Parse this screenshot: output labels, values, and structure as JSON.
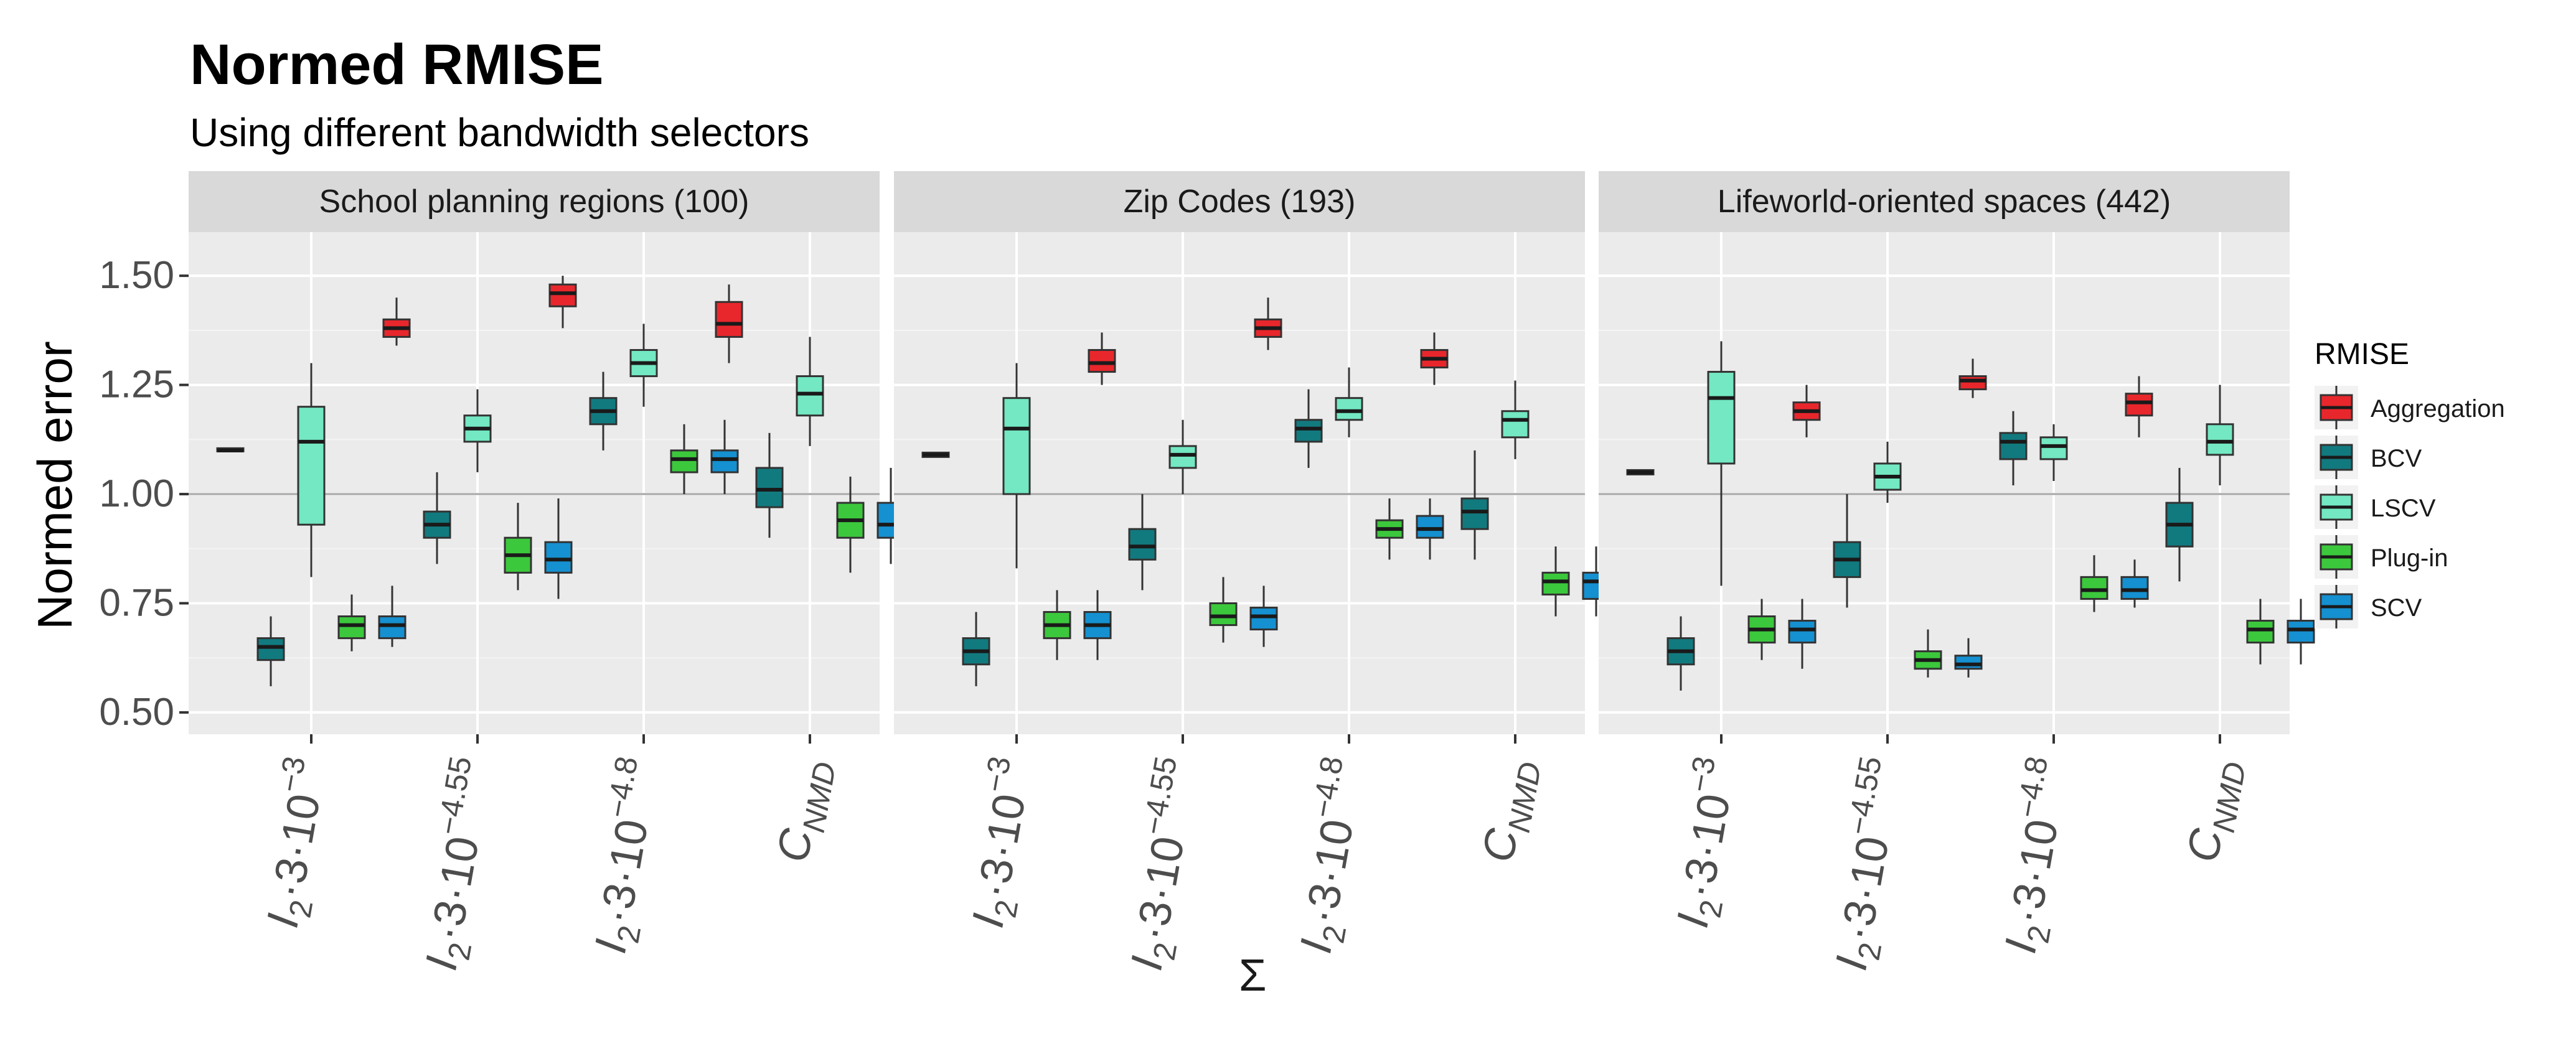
{
  "chart_data": {
    "type": "boxplot",
    "title": "Normed RMISE",
    "subtitle": "Using different bandwidth selectors",
    "ylabel": "Normed error",
    "ylim": [
      0.45,
      1.6
    ],
    "yticks": [
      0.5,
      0.75,
      1.0,
      1.25,
      1.5
    ],
    "reference_line": 1.0,
    "grid": true,
    "legend": {
      "title": "RMISE",
      "position": "right",
      "entries": [
        {
          "name": "Aggregation",
          "color": "#E8272C"
        },
        {
          "name": "BCV",
          "color": "#117A7F"
        },
        {
          "name": "LSCV",
          "color": "#73E8C2"
        },
        {
          "name": "Plug-in",
          "color": "#3CC83C"
        },
        {
          "name": "SCV",
          "color": "#1590D0"
        }
      ]
    },
    "x_categories": [
      {
        "base": "I",
        "sub": "2",
        "body": "·3·10",
        "sup": "−3"
      },
      {
        "base": "I",
        "sub": "2",
        "body": "·3·10",
        "sup": "−4.55"
      },
      {
        "base": "I",
        "sub": "2",
        "body": "·3·10",
        "sup": "−4.8"
      },
      {
        "base": "C",
        "sub": "NMD",
        "body": "",
        "sup": ""
      }
    ],
    "x_extra_label": "Σ",
    "panels": [
      {
        "title": "School planning regions (100)",
        "groups": [
          {
            "category": 0,
            "boxes": [
              {
                "series": "Aggregation",
                "whislo": 1.1,
                "q1": 1.1,
                "med": 1.1,
                "q3": 1.105,
                "whishi": 1.105
              },
              {
                "series": "BCV",
                "whislo": 0.56,
                "q1": 0.62,
                "med": 0.65,
                "q3": 0.67,
                "whishi": 0.72
              },
              {
                "series": "LSCV",
                "whislo": 0.81,
                "q1": 0.93,
                "med": 1.12,
                "q3": 1.2,
                "whishi": 1.3
              },
              {
                "series": "Plug-in",
                "whislo": 0.64,
                "q1": 0.67,
                "med": 0.7,
                "q3": 0.72,
                "whishi": 0.77
              },
              {
                "series": "SCV",
                "whislo": 0.65,
                "q1": 0.67,
                "med": 0.7,
                "q3": 0.72,
                "whishi": 0.79
              }
            ]
          },
          {
            "category": 1,
            "boxes": [
              {
                "series": "Aggregation",
                "whislo": 1.34,
                "q1": 1.36,
                "med": 1.38,
                "q3": 1.4,
                "whishi": 1.45
              },
              {
                "series": "BCV",
                "whislo": 0.84,
                "q1": 0.9,
                "med": 0.93,
                "q3": 0.96,
                "whishi": 1.05
              },
              {
                "series": "LSCV",
                "whislo": 1.05,
                "q1": 1.12,
                "med": 1.15,
                "q3": 1.18,
                "whishi": 1.24
              },
              {
                "series": "Plug-in",
                "whislo": 0.78,
                "q1": 0.82,
                "med": 0.86,
                "q3": 0.9,
                "whishi": 0.98
              },
              {
                "series": "SCV",
                "whislo": 0.76,
                "q1": 0.82,
                "med": 0.85,
                "q3": 0.89,
                "whishi": 0.99
              }
            ]
          },
          {
            "category": 2,
            "boxes": [
              {
                "series": "Aggregation",
                "whislo": 1.38,
                "q1": 1.43,
                "med": 1.46,
                "q3": 1.48,
                "whishi": 1.5
              },
              {
                "series": "BCV",
                "whislo": 1.1,
                "q1": 1.16,
                "med": 1.19,
                "q3": 1.22,
                "whishi": 1.28
              },
              {
                "series": "LSCV",
                "whislo": 1.2,
                "q1": 1.27,
                "med": 1.3,
                "q3": 1.33,
                "whishi": 1.39
              },
              {
                "series": "Plug-in",
                "whislo": 1.0,
                "q1": 1.05,
                "med": 1.08,
                "q3": 1.1,
                "whishi": 1.16
              },
              {
                "series": "SCV",
                "whislo": 1.0,
                "q1": 1.05,
                "med": 1.08,
                "q3": 1.1,
                "whishi": 1.17
              }
            ]
          },
          {
            "category": 3,
            "boxes": [
              {
                "series": "Aggregation",
                "whislo": 1.3,
                "q1": 1.36,
                "med": 1.39,
                "q3": 1.44,
                "whishi": 1.48
              },
              {
                "series": "BCV",
                "whislo": 0.9,
                "q1": 0.97,
                "med": 1.01,
                "q3": 1.06,
                "whishi": 1.14
              },
              {
                "series": "LSCV",
                "whislo": 1.11,
                "q1": 1.18,
                "med": 1.23,
                "q3": 1.27,
                "whishi": 1.36
              },
              {
                "series": "Plug-in",
                "whislo": 0.82,
                "q1": 0.9,
                "med": 0.94,
                "q3": 0.98,
                "whishi": 1.04
              },
              {
                "series": "SCV",
                "whislo": 0.84,
                "q1": 0.9,
                "med": 0.93,
                "q3": 0.98,
                "whishi": 1.06
              }
            ]
          }
        ]
      },
      {
        "title": "Zip Codes (193)",
        "groups": [
          {
            "category": 0,
            "boxes": [
              {
                "series": "Aggregation",
                "whislo": 1.085,
                "q1": 1.085,
                "med": 1.09,
                "q3": 1.095,
                "whishi": 1.095
              },
              {
                "series": "BCV",
                "whislo": 0.56,
                "q1": 0.61,
                "med": 0.64,
                "q3": 0.67,
                "whishi": 0.73
              },
              {
                "series": "LSCV",
                "whislo": 0.83,
                "q1": 1.0,
                "med": 1.15,
                "q3": 1.22,
                "whishi": 1.3
              },
              {
                "series": "Plug-in",
                "whislo": 0.62,
                "q1": 0.67,
                "med": 0.7,
                "q3": 0.73,
                "whishi": 0.78
              },
              {
                "series": "SCV",
                "whislo": 0.62,
                "q1": 0.67,
                "med": 0.7,
                "q3": 0.73,
                "whishi": 0.78
              }
            ]
          },
          {
            "category": 1,
            "boxes": [
              {
                "series": "Aggregation",
                "whislo": 1.25,
                "q1": 1.28,
                "med": 1.3,
                "q3": 1.33,
                "whishi": 1.37
              },
              {
                "series": "BCV",
                "whislo": 0.78,
                "q1": 0.85,
                "med": 0.88,
                "q3": 0.92,
                "whishi": 1.0
              },
              {
                "series": "LSCV",
                "whislo": 1.0,
                "q1": 1.06,
                "med": 1.09,
                "q3": 1.11,
                "whishi": 1.17
              },
              {
                "series": "Plug-in",
                "whislo": 0.66,
                "q1": 0.7,
                "med": 0.72,
                "q3": 0.75,
                "whishi": 0.81
              },
              {
                "series": "SCV",
                "whislo": 0.65,
                "q1": 0.69,
                "med": 0.72,
                "q3": 0.74,
                "whishi": 0.79
              }
            ]
          },
          {
            "category": 2,
            "boxes": [
              {
                "series": "Aggregation",
                "whislo": 1.33,
                "q1": 1.36,
                "med": 1.38,
                "q3": 1.4,
                "whishi": 1.45
              },
              {
                "series": "BCV",
                "whislo": 1.06,
                "q1": 1.12,
                "med": 1.15,
                "q3": 1.17,
                "whishi": 1.24
              },
              {
                "series": "LSCV",
                "whislo": 1.13,
                "q1": 1.17,
                "med": 1.19,
                "q3": 1.22,
                "whishi": 1.29
              },
              {
                "series": "Plug-in",
                "whislo": 0.85,
                "q1": 0.9,
                "med": 0.92,
                "q3": 0.94,
                "whishi": 0.99
              },
              {
                "series": "SCV",
                "whislo": 0.85,
                "q1": 0.9,
                "med": 0.92,
                "q3": 0.95,
                "whishi": 0.99
              }
            ]
          },
          {
            "category": 3,
            "boxes": [
              {
                "series": "Aggregation",
                "whislo": 1.25,
                "q1": 1.29,
                "med": 1.31,
                "q3": 1.33,
                "whishi": 1.37
              },
              {
                "series": "BCV",
                "whislo": 0.85,
                "q1": 0.92,
                "med": 0.96,
                "q3": 0.99,
                "whishi": 1.1
              },
              {
                "series": "LSCV",
                "whislo": 1.08,
                "q1": 1.13,
                "med": 1.17,
                "q3": 1.19,
                "whishi": 1.26
              },
              {
                "series": "Plug-in",
                "whislo": 0.72,
                "q1": 0.77,
                "med": 0.8,
                "q3": 0.82,
                "whishi": 0.88
              },
              {
                "series": "SCV",
                "whislo": 0.72,
                "q1": 0.76,
                "med": 0.8,
                "q3": 0.82,
                "whishi": 0.88
              }
            ]
          }
        ]
      },
      {
        "title": "Lifeworld-oriented spaces (442)",
        "groups": [
          {
            "category": 0,
            "boxes": [
              {
                "series": "Aggregation",
                "whislo": 1.045,
                "q1": 1.045,
                "med": 1.05,
                "q3": 1.055,
                "whishi": 1.055
              },
              {
                "series": "BCV",
                "whislo": 0.55,
                "q1": 0.61,
                "med": 0.64,
                "q3": 0.67,
                "whishi": 0.72
              },
              {
                "series": "LSCV",
                "whislo": 0.79,
                "q1": 1.07,
                "med": 1.22,
                "q3": 1.28,
                "whishi": 1.35
              },
              {
                "series": "Plug-in",
                "whislo": 0.62,
                "q1": 0.66,
                "med": 0.69,
                "q3": 0.72,
                "whishi": 0.76
              },
              {
                "series": "SCV",
                "whislo": 0.6,
                "q1": 0.66,
                "med": 0.69,
                "q3": 0.71,
                "whishi": 0.76
              }
            ]
          },
          {
            "category": 1,
            "boxes": [
              {
                "series": "Aggregation",
                "whislo": 1.13,
                "q1": 1.17,
                "med": 1.19,
                "q3": 1.21,
                "whishi": 1.25
              },
              {
                "series": "BCV",
                "whislo": 0.74,
                "q1": 0.81,
                "med": 0.85,
                "q3": 0.89,
                "whishi": 1.0
              },
              {
                "series": "LSCV",
                "whislo": 0.98,
                "q1": 1.01,
                "med": 1.04,
                "q3": 1.07,
                "whishi": 1.12
              },
              {
                "series": "Plug-in",
                "whislo": 0.58,
                "q1": 0.6,
                "med": 0.62,
                "q3": 0.64,
                "whishi": 0.69
              },
              {
                "series": "SCV",
                "whislo": 0.58,
                "q1": 0.6,
                "med": 0.61,
                "q3": 0.63,
                "whishi": 0.67
              }
            ]
          },
          {
            "category": 2,
            "boxes": [
              {
                "series": "Aggregation",
                "whislo": 1.22,
                "q1": 1.24,
                "med": 1.26,
                "q3": 1.27,
                "whishi": 1.31
              },
              {
                "series": "BCV",
                "whislo": 1.02,
                "q1": 1.08,
                "med": 1.12,
                "q3": 1.14,
                "whishi": 1.19
              },
              {
                "series": "LSCV",
                "whislo": 1.03,
                "q1": 1.08,
                "med": 1.11,
                "q3": 1.13,
                "whishi": 1.16
              },
              {
                "series": "Plug-in",
                "whislo": 0.73,
                "q1": 0.76,
                "med": 0.78,
                "q3": 0.81,
                "whishi": 0.86
              },
              {
                "series": "SCV",
                "whislo": 0.74,
                "q1": 0.76,
                "med": 0.78,
                "q3": 0.81,
                "whishi": 0.85
              }
            ]
          },
          {
            "category": 3,
            "boxes": [
              {
                "series": "Aggregation",
                "whislo": 1.13,
                "q1": 1.18,
                "med": 1.21,
                "q3": 1.23,
                "whishi": 1.27
              },
              {
                "series": "BCV",
                "whislo": 0.8,
                "q1": 0.88,
                "med": 0.93,
                "q3": 0.98,
                "whishi": 1.06
              },
              {
                "series": "LSCV",
                "whislo": 1.02,
                "q1": 1.09,
                "med": 1.12,
                "q3": 1.16,
                "whishi": 1.25
              },
              {
                "series": "Plug-in",
                "whislo": 0.61,
                "q1": 0.66,
                "med": 0.69,
                "q3": 0.71,
                "whishi": 0.76
              },
              {
                "series": "SCV",
                "whislo": 0.61,
                "q1": 0.66,
                "med": 0.69,
                "q3": 0.71,
                "whishi": 0.76
              }
            ]
          }
        ]
      }
    ]
  }
}
